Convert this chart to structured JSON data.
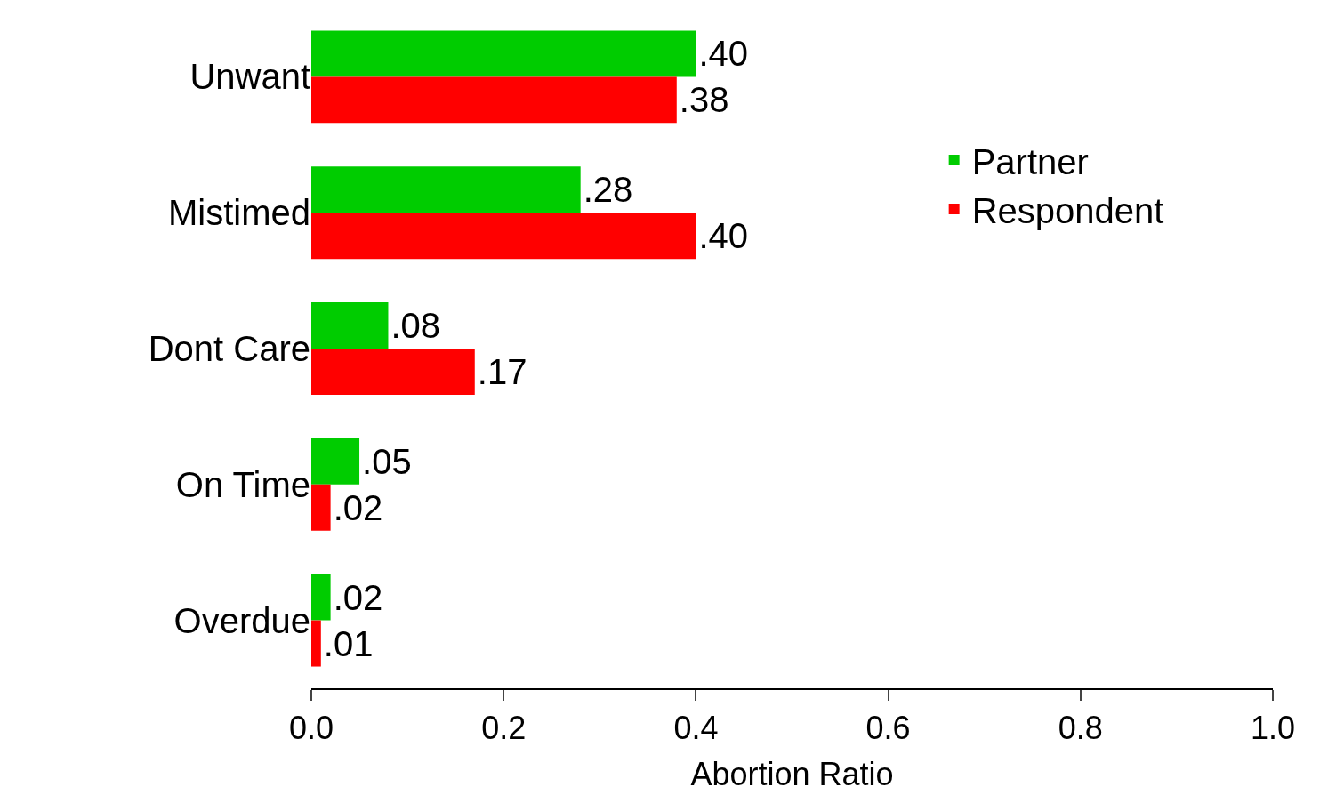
{
  "chart_data": {
    "type": "bar",
    "orientation": "horizontal",
    "xlabel": "Abortion Ratio",
    "categories": [
      "Unwant",
      "Mistimed",
      "Dont Care",
      "On Time",
      "Overdue"
    ],
    "series": [
      {
        "name": "Partner",
        "color": "#00cc00",
        "values": [
          0.4,
          0.28,
          0.08,
          0.05,
          0.02
        ],
        "value_labels": [
          ".40",
          ".28",
          ".08",
          ".05",
          ".02"
        ]
      },
      {
        "name": "Respondent",
        "color": "#ff0000",
        "values": [
          0.38,
          0.4,
          0.17,
          0.02,
          0.01
        ],
        "value_labels": [
          ".38",
          ".40",
          ".17",
          ".02",
          ".01"
        ]
      }
    ],
    "xlim": [
      0,
      1
    ],
    "xticks": [
      {
        "value": 0,
        "label": "0.0"
      },
      {
        "value": 0.2,
        "label": "0.2"
      },
      {
        "value": 0.4,
        "label": "0.4"
      },
      {
        "value": 0.6,
        "label": "0.6"
      },
      {
        "value": 0.8,
        "label": "0.8"
      },
      {
        "value": 1,
        "label": "1.0"
      }
    ],
    "grid": false,
    "legend": "top right"
  }
}
